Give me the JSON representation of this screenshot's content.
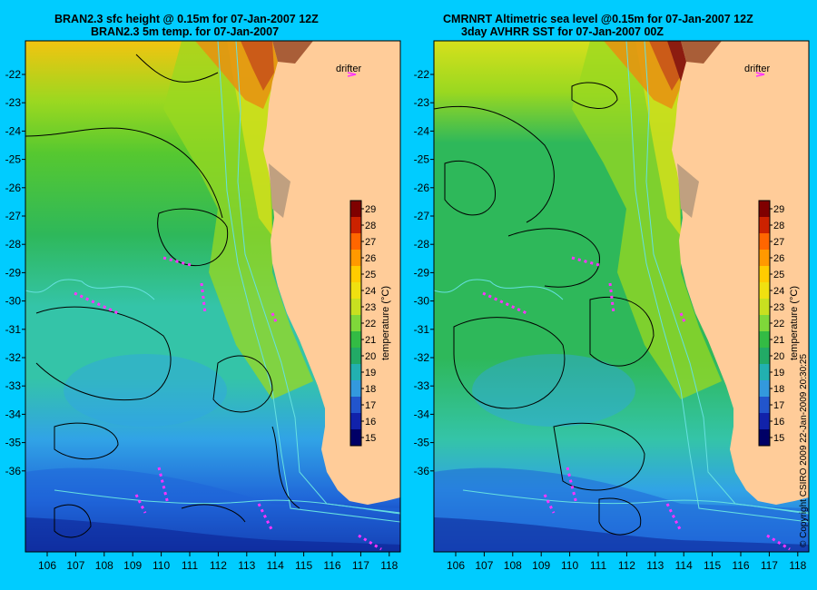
{
  "panels": [
    {
      "id": "bran",
      "title_line1": "BRAN2.3 sfc height @ 0.15m for 07-Jan-2007 12Z",
      "title_line2": "BRAN2.3 5m temp. for 07-Jan-2007"
    },
    {
      "id": "cmr",
      "title_line1": "CMRNRT Altimetric sea level  @0.15m  for 07-Jan-2007 12Z",
      "title_line2": "3day AVHRR SST for 07-Jan-2007 00Z"
    }
  ],
  "map": {
    "lon_ticks": [
      "106",
      "107",
      "108",
      "109",
      "110",
      "111",
      "112",
      "113",
      "114",
      "115",
      "116",
      "117",
      "118"
    ],
    "lat_ticks": [
      "-22",
      "-23",
      "-24",
      "-25",
      "-26",
      "-27",
      "-28",
      "-29",
      "-30",
      "-31",
      "-32",
      "-33",
      "-34",
      "-35",
      "-36"
    ],
    "drifter_label": "drifter",
    "ocean_palette": [
      "#0a1a8c",
      "#1f64d8",
      "#31a3e6",
      "#34c4a8",
      "#2eb85a",
      "#56c830",
      "#9ad820",
      "#d6e01c",
      "#f2c410",
      "#e89010",
      "#c8541a",
      "#8c1c10"
    ],
    "land_color": "#ffcc99",
    "drifter_color": "#ff33ff",
    "contour_color": "#000000",
    "bathymetry_color": "#66e0e0"
  },
  "colorbar": {
    "label": "temperature (°C)",
    "ticks": [
      "29",
      "28",
      "27",
      "26",
      "25",
      "24",
      "23",
      "22",
      "21",
      "20",
      "19",
      "18",
      "17",
      "16",
      "15"
    ],
    "stops": [
      "#7f0000",
      "#cc2200",
      "#ff6600",
      "#ff9900",
      "#ffcc00",
      "#f0e010",
      "#c8e020",
      "#7fd83a",
      "#33bb44",
      "#22aa66",
      "#22b0b0",
      "#3399dd",
      "#2255cc",
      "#1122aa",
      "#000066"
    ]
  },
  "copyright": "© Copyright CSIRO 2009    22-Jan-2009 20:30:25"
}
